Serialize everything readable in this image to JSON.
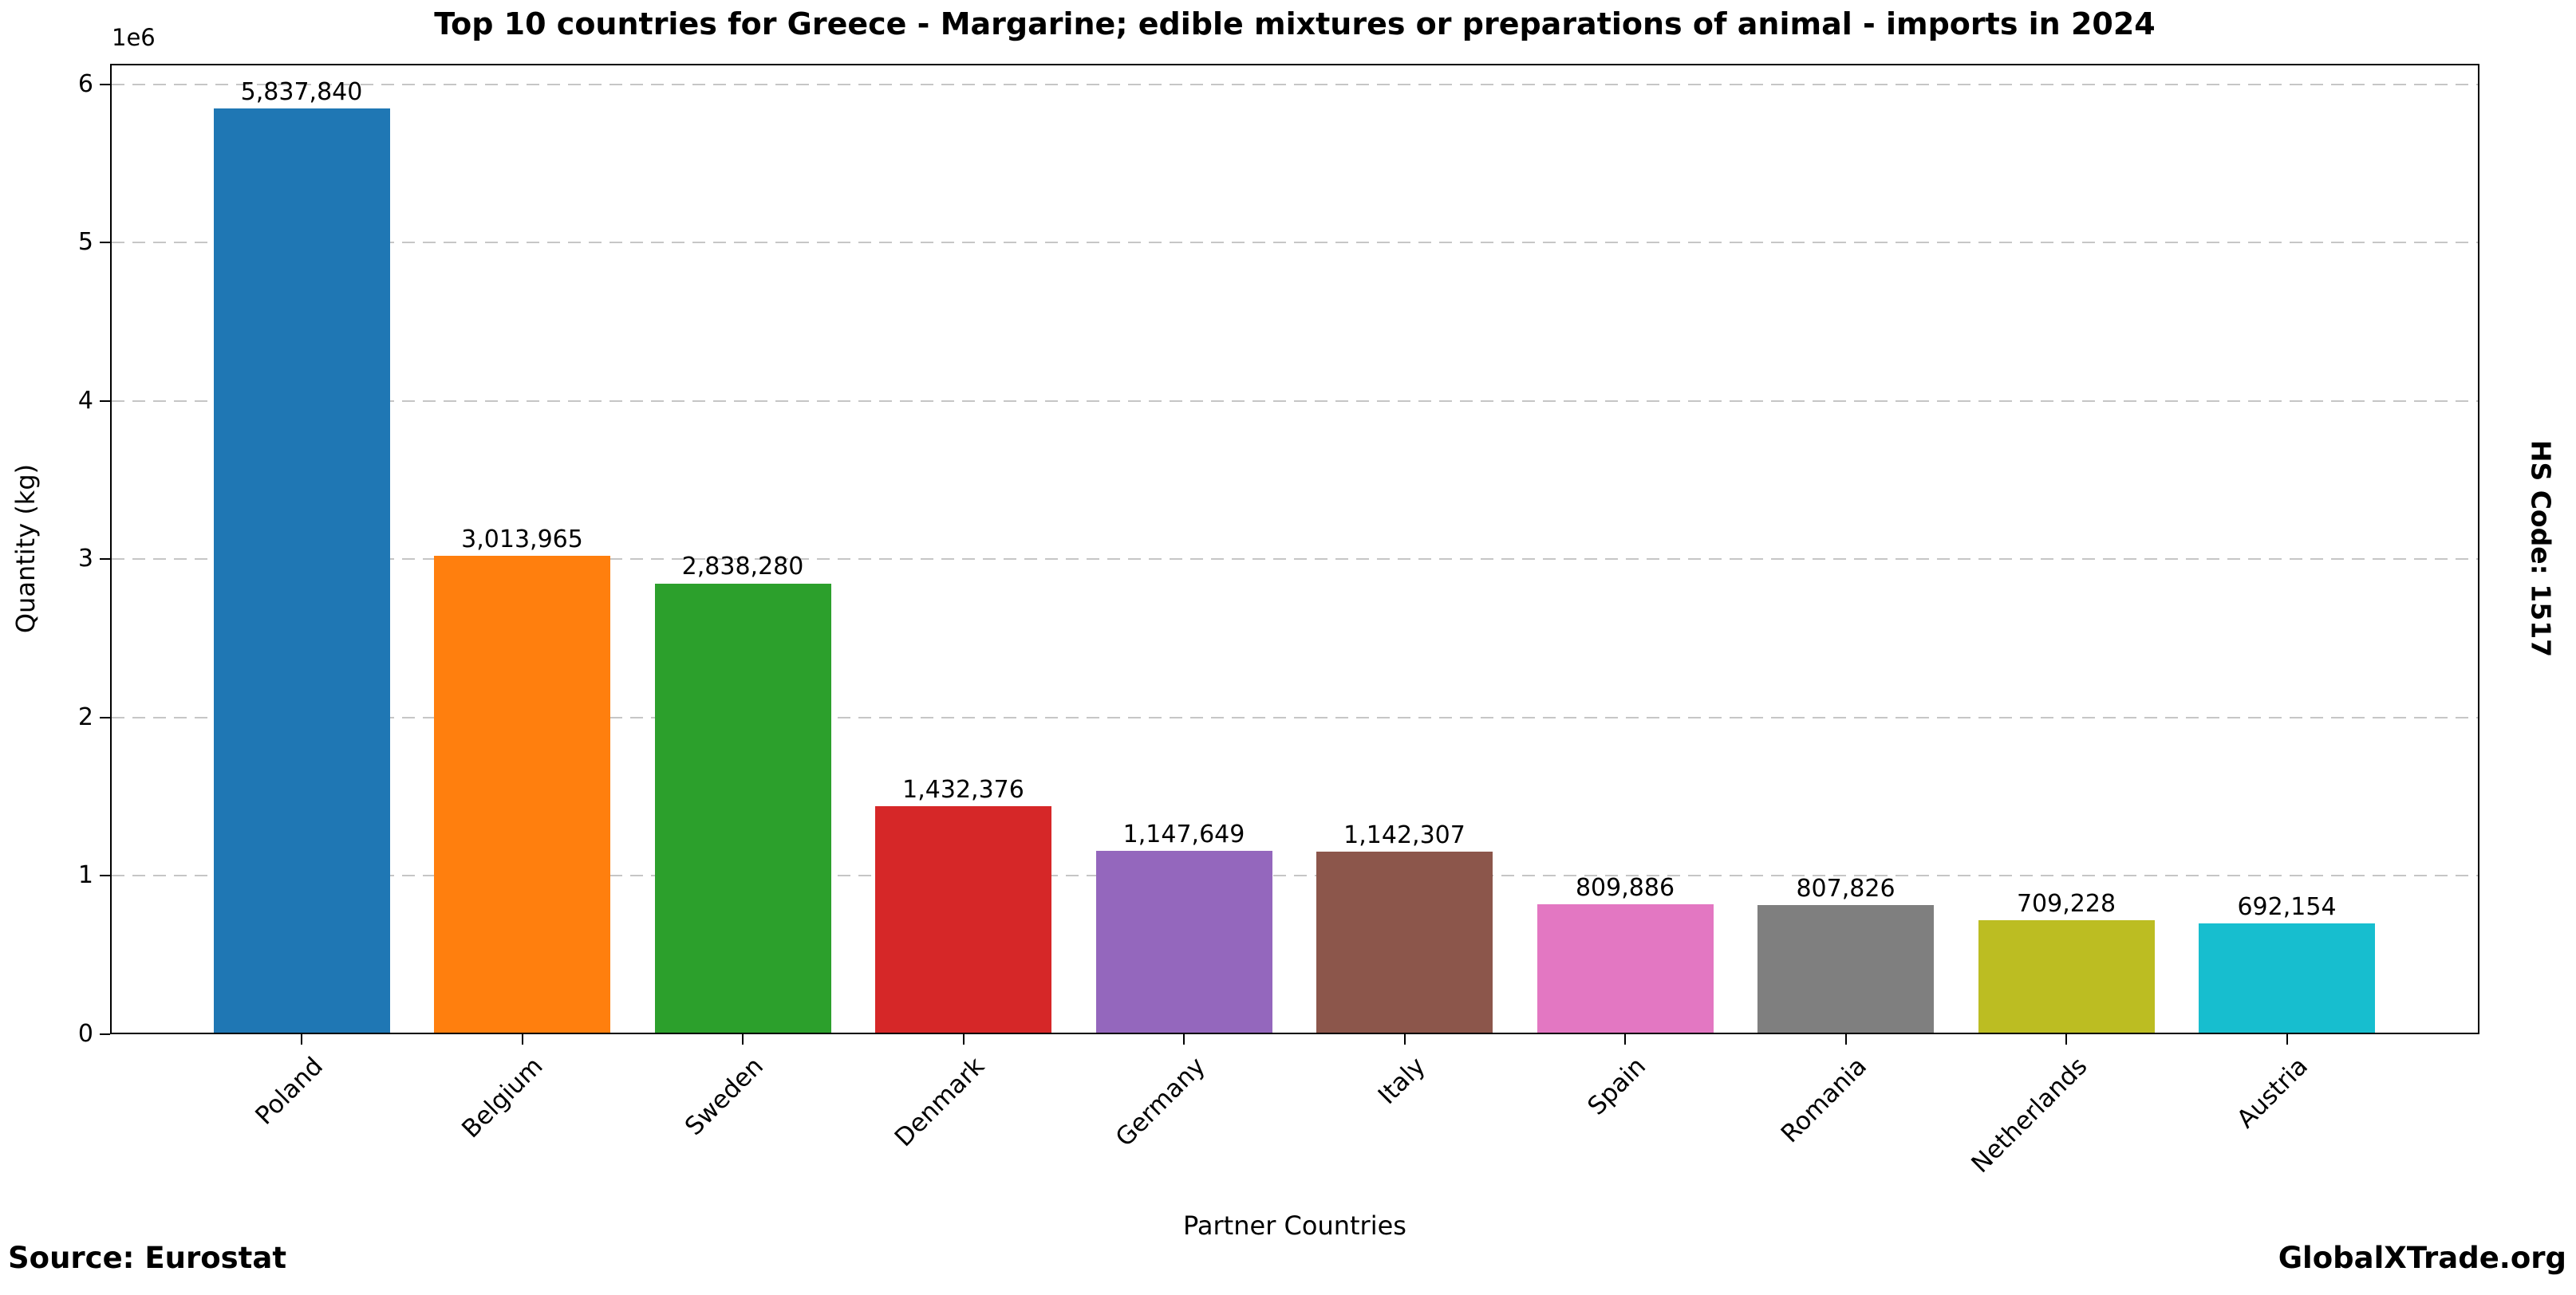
{
  "title": "Top 10 countries for Greece - Margarine; edible mixtures or preparations of animal - imports in 2024",
  "side_label": "HS Code: 1517",
  "footer": {
    "source": "Source: Eurostat",
    "brand": "GlobalXTrade.org"
  },
  "chart_data": {
    "type": "bar",
    "title": "Top 10 countries for Greece - Margarine; edible mixtures or preparations of animal - imports in 2024",
    "xlabel": "Partner Countries",
    "ylabel": "Quantity (kg)",
    "offset_label": "1e6",
    "categories": [
      "Poland",
      "Belgium",
      "Sweden",
      "Denmark",
      "Germany",
      "Italy",
      "Spain",
      "Romania",
      "Netherlands",
      "Austria"
    ],
    "values": [
      5837840,
      3013965,
      2838280,
      1432376,
      1147649,
      1142307,
      809886,
      807826,
      709228,
      692154
    ],
    "value_labels": [
      "5,837,840",
      "3,013,965",
      "2,838,280",
      "1,432,376",
      "1,147,649",
      "1,142,307",
      "809,886",
      "807,826",
      "709,228",
      "692,154"
    ],
    "bar_colors": [
      "#1f77b4",
      "#ff7f0e",
      "#2ca02c",
      "#d62728",
      "#9467bd",
      "#8c564b",
      "#e377c2",
      "#7f7f7f",
      "#bcbd22",
      "#17becf"
    ],
    "yticks": {
      "values": [
        0,
        1000000,
        2000000,
        3000000,
        4000000,
        5000000,
        6000000
      ],
      "labels": [
        "0",
        "1",
        "2",
        "3",
        "4",
        "5",
        "6"
      ]
    },
    "ylim": [
      0,
      6129732
    ],
    "grid": "horizontal-dashed",
    "grid_color": "#c6c6c6",
    "legend": "none"
  }
}
